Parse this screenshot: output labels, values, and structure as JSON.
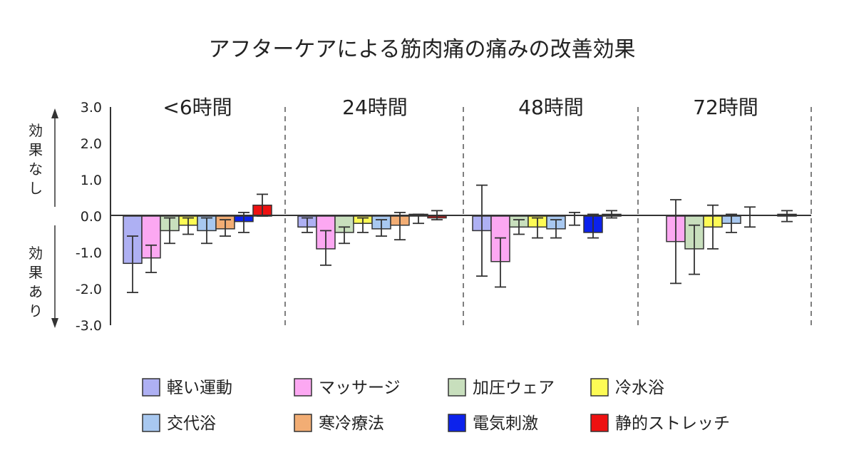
{
  "chart_data": {
    "type": "bar",
    "title": "アフターケアによる筋肉痛の痛みの改善効果",
    "panels": [
      "<6時間",
      "24時間",
      "48時間",
      "72時間"
    ],
    "yticks": [
      "3.0",
      "2.0",
      "1.0",
      "0.0",
      "-1.0",
      "-2.0",
      "-3.0"
    ],
    "ylim": [
      -3,
      3
    ],
    "side_labels": {
      "upper": [
        "効",
        "果",
        "な",
        "し"
      ],
      "lower": [
        "効",
        "果",
        "あ",
        "り"
      ]
    },
    "series": [
      {
        "name": "軽い運動",
        "color": "#aeb0f3",
        "values": [
          -1.3,
          -0.3,
          -0.4,
          null
        ],
        "errors": [
          [
            -2.1,
            -0.55
          ],
          [
            -0.45,
            -0.05
          ],
          [
            -1.65,
            0.85
          ],
          null
        ]
      },
      {
        "name": "マッサージ",
        "color": "#fca8f2",
        "values": [
          -1.15,
          -0.9,
          -1.25,
          -0.7
        ],
        "errors": [
          [
            -1.55,
            -0.8
          ],
          [
            -1.35,
            -0.4
          ],
          [
            -1.95,
            -0.6
          ],
          [
            -1.85,
            0.45
          ]
        ]
      },
      {
        "name": "加圧ウェア",
        "color": "#c8dfbd",
        "values": [
          -0.4,
          -0.45,
          -0.3,
          -0.9
        ],
        "errors": [
          [
            -0.75,
            -0.05
          ],
          [
            -0.75,
            -0.3
          ],
          [
            -0.5,
            -0.1
          ],
          [
            -1.6,
            -0.25
          ]
        ]
      },
      {
        "name": "冷水浴",
        "color": "#fdfb55",
        "values": [
          -0.25,
          -0.2,
          -0.3,
          -0.3
        ],
        "errors": [
          [
            -0.5,
            -0.05
          ],
          [
            -0.45,
            -0.05
          ],
          [
            -0.6,
            -0.05
          ],
          [
            -0.9,
            0.3
          ]
        ]
      },
      {
        "name": "交代浴",
        "color": "#a8c8f0",
        "values": [
          -0.4,
          -0.35,
          -0.35,
          -0.2
        ],
        "errors": [
          [
            -0.75,
            -0.05
          ],
          [
            -0.55,
            -0.1
          ],
          [
            -0.6,
            -0.1
          ],
          [
            -0.45,
            0.05
          ]
        ]
      },
      {
        "name": "寒冷療法",
        "color": "#f2ad74",
        "values": [
          -0.35,
          -0.25,
          null,
          null
        ],
        "errors": [
          [
            -0.55,
            -0.1
          ],
          [
            -0.65,
            0.1
          ],
          [
            -0.25,
            0.1
          ],
          [
            -0.3,
            0.25
          ]
        ]
      },
      {
        "name": "電気刺激",
        "color": "#0c22ec",
        "values": [
          -0.15,
          0.05,
          -0.45,
          null
        ],
        "errors": [
          [
            -0.45,
            0.1
          ],
          [
            -0.2,
            0.05
          ],
          [
            -0.6,
            0.05
          ],
          null
        ]
      },
      {
        "name": "静的ストレッチ",
        "color": "#ee1111",
        "values": [
          0.3,
          -0.05,
          0.05,
          0.05
        ],
        "errors": [
          [
            0.0,
            0.6
          ],
          [
            -0.1,
            0.15
          ],
          [
            -0.05,
            0.15
          ],
          [
            -0.15,
            0.15
          ]
        ]
      }
    ],
    "legend": {
      "position": "bottom",
      "columns": 4
    },
    "grid": false
  }
}
